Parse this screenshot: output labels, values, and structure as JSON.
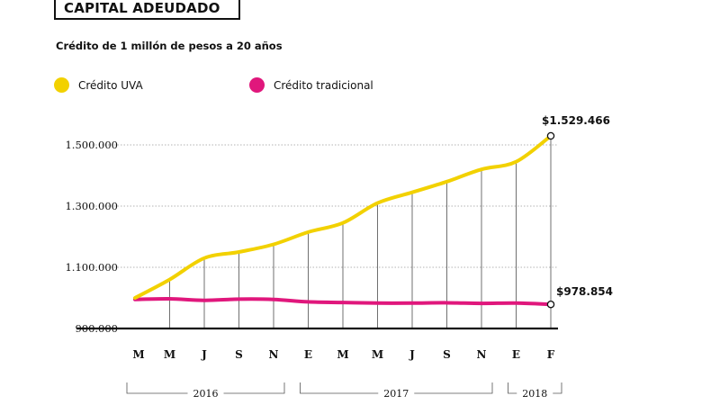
{
  "header": {
    "title": "CAPITAL ADEUDADO",
    "subtitle": "Crédito de 1 millón de pesos a 20 años"
  },
  "colors": {
    "uva": "#f2d100",
    "tradicional": "#e0177c"
  },
  "chart_data": {
    "type": "line",
    "title": "CAPITAL ADEUDADO",
    "subtitle": "Crédito de 1 millón de pesos a 20 años",
    "categories": [
      "M",
      "M",
      "J",
      "S",
      "N",
      "E",
      "M",
      "M",
      "J",
      "S",
      "N",
      "E",
      "F"
    ],
    "years": [
      {
        "label": "2016",
        "from": 0,
        "to": 4
      },
      {
        "label": "2017",
        "from": 5,
        "to": 10
      },
      {
        "label": "2018",
        "from": 11,
        "to": 12
      }
    ],
    "yticks": [
      {
        "value": 900000,
        "label": "900.000"
      },
      {
        "value": 1100000,
        "label": "1.100.000"
      },
      {
        "value": 1300000,
        "label": "1.300.000"
      },
      {
        "value": 1500000,
        "label": "1.500.000"
      }
    ],
    "ylim": [
      900000,
      1560000
    ],
    "series": [
      {
        "name": "Crédito UVA",
        "color": "#f2d100",
        "values": [
          1000000,
          1060000,
          1130000,
          1150000,
          1175000,
          1215000,
          1245000,
          1310000,
          1345000,
          1380000,
          1420000,
          1445000,
          1529466
        ],
        "end_label": "$1.529.466"
      },
      {
        "name": "Crédito tradicional",
        "color": "#e0177c",
        "values": [
          995000,
          997000,
          992000,
          996000,
          995000,
          987000,
          985000,
          983000,
          983000,
          984000,
          982000,
          983000,
          978854
        ],
        "end_label": "$978.854"
      }
    ],
    "grid": true,
    "legend": "top-left"
  }
}
